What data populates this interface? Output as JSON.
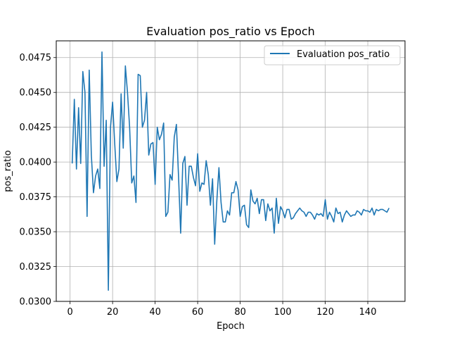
{
  "chart_data": {
    "type": "line",
    "title": "Evaluation pos_ratio vs Epoch",
    "xlabel": "Epoch",
    "ylabel": "pos_ratio",
    "xlim": [
      -6.5,
      157.5
    ],
    "ylim": [
      0.03,
      0.0487
    ],
    "x_ticks": [
      0,
      20,
      40,
      60,
      80,
      100,
      120,
      140
    ],
    "y_ticks": [
      0.03,
      0.0325,
      0.035,
      0.0375,
      0.04,
      0.0425,
      0.045,
      0.0475
    ],
    "y_tick_labels": [
      "0.0300",
      "0.0325",
      "0.0350",
      "0.0375",
      "0.0400",
      "0.0425",
      "0.0450",
      "0.0475"
    ],
    "grid": true,
    "legend_position": "top-right",
    "series": [
      {
        "name": "Evaluation pos_ratio",
        "color": "#1f77b4",
        "x": [
          1,
          2,
          3,
          4,
          5,
          6,
          7,
          8,
          9,
          10,
          11,
          12,
          13,
          14,
          15,
          16,
          17,
          18,
          19,
          20,
          21,
          22,
          23,
          24,
          25,
          26,
          27,
          28,
          29,
          30,
          31,
          32,
          33,
          34,
          35,
          36,
          37,
          38,
          39,
          40,
          41,
          42,
          43,
          44,
          45,
          46,
          47,
          48,
          49,
          50,
          51,
          52,
          53,
          54,
          55,
          56,
          57,
          58,
          59,
          60,
          61,
          62,
          63,
          64,
          65,
          66,
          67,
          68,
          69,
          70,
          71,
          72,
          73,
          74,
          75,
          76,
          77,
          78,
          79,
          80,
          81,
          82,
          83,
          84,
          85,
          86,
          87,
          88,
          89,
          90,
          91,
          92,
          93,
          94,
          95,
          96,
          97,
          98,
          99,
          100,
          101,
          102,
          103,
          104,
          105,
          106,
          107,
          108,
          109,
          110,
          111,
          112,
          113,
          114,
          115,
          116,
          117,
          118,
          119,
          120,
          121,
          122,
          123,
          124,
          125,
          126,
          127,
          128,
          129,
          130,
          131,
          132,
          133,
          134,
          135,
          136,
          137,
          138,
          139,
          140,
          141,
          142,
          143,
          144,
          145,
          146,
          147,
          148,
          149,
          150
        ],
        "y": [
          0.0399,
          0.0445,
          0.0395,
          0.0439,
          0.0399,
          0.0465,
          0.045,
          0.0361,
          0.0466,
          0.0405,
          0.0378,
          0.039,
          0.0395,
          0.0381,
          0.0479,
          0.0397,
          0.043,
          0.0308,
          0.0425,
          0.0443,
          0.0413,
          0.0386,
          0.0395,
          0.0449,
          0.041,
          0.0469,
          0.045,
          0.0425,
          0.0385,
          0.039,
          0.0371,
          0.0463,
          0.0462,
          0.0425,
          0.043,
          0.045,
          0.0405,
          0.0413,
          0.0414,
          0.0384,
          0.0425,
          0.0416,
          0.042,
          0.0428,
          0.0361,
          0.0364,
          0.0391,
          0.0387,
          0.0418,
          0.0427,
          0.039,
          0.0349,
          0.0399,
          0.0404,
          0.0369,
          0.0397,
          0.0397,
          0.0389,
          0.0383,
          0.0406,
          0.0379,
          0.0385,
          0.0384,
          0.0401,
          0.0391,
          0.0369,
          0.0388,
          0.0341,
          0.0372,
          0.0396,
          0.0371,
          0.0357,
          0.0357,
          0.0365,
          0.0362,
          0.0378,
          0.0378,
          0.0386,
          0.038,
          0.0361,
          0.0368,
          0.0369,
          0.0355,
          0.0353,
          0.038,
          0.0372,
          0.037,
          0.0374,
          0.0363,
          0.0373,
          0.0373,
          0.0358,
          0.037,
          0.0365,
          0.0367,
          0.0349,
          0.0374,
          0.0356,
          0.0368,
          0.0365,
          0.036,
          0.0366,
          0.0366,
          0.0359,
          0.036,
          0.0363,
          0.0365,
          0.0367,
          0.0365,
          0.0364,
          0.0361,
          0.0364,
          0.0364,
          0.0362,
          0.0359,
          0.0363,
          0.0362,
          0.0363,
          0.0361,
          0.0373,
          0.0359,
          0.0364,
          0.0361,
          0.0357,
          0.0367,
          0.0363,
          0.0364,
          0.0357,
          0.0362,
          0.0365,
          0.0363,
          0.0361,
          0.0362,
          0.0362,
          0.0365,
          0.0364,
          0.0362,
          0.0366,
          0.0365,
          0.0365,
          0.0364,
          0.0367,
          0.0362,
          0.0366,
          0.0365,
          0.0366,
          0.0366,
          0.0365,
          0.0364,
          0.0367
        ]
      }
    ]
  }
}
